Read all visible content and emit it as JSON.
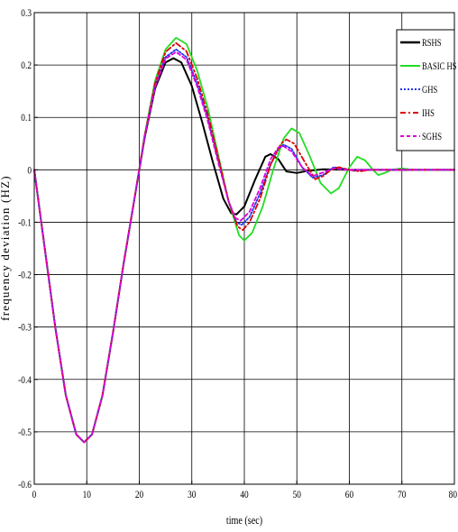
{
  "chart_data": {
    "type": "line",
    "title": "",
    "xlabel": "time (sec)",
    "ylabel": "frequency deviation (HZ)",
    "xlim": [
      0,
      80
    ],
    "ylim": [
      -0.6,
      0.3
    ],
    "xticks": [
      0,
      10,
      20,
      30,
      40,
      50,
      60,
      70,
      80
    ],
    "xtick_labels": [
      "0",
      "10",
      "20",
      "30",
      "40",
      "50",
      "60",
      "70",
      "80"
    ],
    "yticks": [
      0.3,
      0.2,
      0.1,
      0,
      -0.1,
      -0.2,
      -0.3,
      -0.4,
      -0.5,
      -0.6
    ],
    "ytick_labels": [
      "0.3",
      "0.2",
      "0.1",
      "0",
      "-0.1",
      "-0.2",
      "-0.3",
      "-0.4",
      "-0.5",
      "-0.6"
    ],
    "grid": true,
    "legend_position": "top-right",
    "series": [
      {
        "name": "RSHS",
        "color": "#000000",
        "dash": "solid",
        "points": [
          [
            0,
            0
          ],
          [
            2,
            -0.15
          ],
          [
            4,
            -0.3
          ],
          [
            6,
            -0.43
          ],
          [
            8,
            -0.505
          ],
          [
            9.5,
            -0.52
          ],
          [
            11,
            -0.505
          ],
          [
            13,
            -0.43
          ],
          [
            15,
            -0.31
          ],
          [
            17,
            -0.18
          ],
          [
            19,
            -0.06
          ],
          [
            21,
            0.06
          ],
          [
            23,
            0.155
          ],
          [
            25,
            0.205
          ],
          [
            26.5,
            0.213
          ],
          [
            28,
            0.205
          ],
          [
            30,
            0.16
          ],
          [
            32,
            0.09
          ],
          [
            34,
            0.015
          ],
          [
            36,
            -0.055
          ],
          [
            37.5,
            -0.083
          ],
          [
            38.5,
            -0.085
          ],
          [
            40,
            -0.07
          ],
          [
            42,
            -0.02
          ],
          [
            44,
            0.025
          ],
          [
            45,
            0.03
          ],
          [
            46.5,
            0.02
          ],
          [
            48,
            -0.003
          ],
          [
            50,
            -0.006
          ],
          [
            52,
            -0.002
          ],
          [
            55,
            0.001
          ],
          [
            60,
            0
          ],
          [
            70,
            0
          ],
          [
            80,
            0
          ]
        ]
      },
      {
        "name": "BASIC HS",
        "color": "#22dd22",
        "dash": "solid",
        "points": [
          [
            0,
            0
          ],
          [
            2,
            -0.15
          ],
          [
            4,
            -0.3
          ],
          [
            6,
            -0.43
          ],
          [
            8,
            -0.505
          ],
          [
            9.5,
            -0.52
          ],
          [
            11,
            -0.505
          ],
          [
            13,
            -0.43
          ],
          [
            15,
            -0.31
          ],
          [
            17,
            -0.18
          ],
          [
            19,
            -0.06
          ],
          [
            21,
            0.065
          ],
          [
            23,
            0.17
          ],
          [
            25,
            0.23
          ],
          [
            27,
            0.252
          ],
          [
            29,
            0.24
          ],
          [
            31,
            0.19
          ],
          [
            33,
            0.12
          ],
          [
            35,
            0.03
          ],
          [
            37,
            -0.06
          ],
          [
            39,
            -0.125
          ],
          [
            40,
            -0.135
          ],
          [
            41.5,
            -0.12
          ],
          [
            43.5,
            -0.07
          ],
          [
            45.5,
            0
          ],
          [
            47.5,
            0.06
          ],
          [
            49,
            0.079
          ],
          [
            50.5,
            0.07
          ],
          [
            52.5,
            0.025
          ],
          [
            54.5,
            -0.025
          ],
          [
            56.5,
            -0.045
          ],
          [
            58,
            -0.035
          ],
          [
            60,
            0.005
          ],
          [
            61.5,
            0.025
          ],
          [
            63,
            0.018
          ],
          [
            64.5,
            0
          ],
          [
            65.5,
            -0.01
          ],
          [
            67,
            -0.005
          ],
          [
            68,
            0
          ],
          [
            70,
            0.003
          ],
          [
            72,
            0
          ],
          [
            80,
            0
          ]
        ]
      },
      {
        "name": "GHS",
        "color": "#2233ee",
        "dash": "2,2",
        "points": [
          [
            0,
            0
          ],
          [
            2,
            -0.15
          ],
          [
            4,
            -0.3
          ],
          [
            6,
            -0.43
          ],
          [
            8,
            -0.505
          ],
          [
            9.5,
            -0.52
          ],
          [
            11,
            -0.505
          ],
          [
            13,
            -0.43
          ],
          [
            15,
            -0.31
          ],
          [
            17,
            -0.18
          ],
          [
            19,
            -0.06
          ],
          [
            21,
            0.062
          ],
          [
            23,
            0.16
          ],
          [
            25,
            0.215
          ],
          [
            27,
            0.23
          ],
          [
            29,
            0.215
          ],
          [
            31,
            0.165
          ],
          [
            33,
            0.1
          ],
          [
            35,
            0.02
          ],
          [
            37,
            -0.06
          ],
          [
            38.5,
            -0.1
          ],
          [
            39.5,
            -0.105
          ],
          [
            41,
            -0.09
          ],
          [
            43,
            -0.045
          ],
          [
            45,
            0.01
          ],
          [
            46.5,
            0.04
          ],
          [
            47.5,
            0.048
          ],
          [
            49,
            0.04
          ],
          [
            51,
            0.005
          ],
          [
            53,
            -0.015
          ],
          [
            55,
            -0.01
          ],
          [
            57,
            0.005
          ],
          [
            59,
            0.002
          ],
          [
            61,
            -0.002
          ],
          [
            63,
            0
          ],
          [
            80,
            0
          ]
        ]
      },
      {
        "name": "IHS",
        "color": "#dd0000",
        "dash": "6,3,2,3",
        "points": [
          [
            0,
            0
          ],
          [
            2,
            -0.15
          ],
          [
            4,
            -0.3
          ],
          [
            6,
            -0.43
          ],
          [
            8,
            -0.505
          ],
          [
            9.5,
            -0.52
          ],
          [
            11,
            -0.505
          ],
          [
            13,
            -0.43
          ],
          [
            15,
            -0.31
          ],
          [
            17,
            -0.18
          ],
          [
            19,
            -0.06
          ],
          [
            21,
            0.064
          ],
          [
            23,
            0.165
          ],
          [
            25,
            0.225
          ],
          [
            27,
            0.242
          ],
          [
            29,
            0.226
          ],
          [
            31,
            0.175
          ],
          [
            33,
            0.108
          ],
          [
            35,
            0.025
          ],
          [
            37,
            -0.06
          ],
          [
            38.7,
            -0.108
          ],
          [
            39.7,
            -0.115
          ],
          [
            41,
            -0.1
          ],
          [
            43,
            -0.055
          ],
          [
            45,
            0.01
          ],
          [
            47,
            0.05
          ],
          [
            48,
            0.058
          ],
          [
            49.5,
            0.05
          ],
          [
            51.5,
            0.015
          ],
          [
            53.5,
            -0.018
          ],
          [
            55,
            -0.012
          ],
          [
            56.5,
            0
          ],
          [
            58,
            0.005
          ],
          [
            60,
            0
          ],
          [
            62,
            -0.003
          ],
          [
            64,
            0
          ],
          [
            80,
            0
          ]
        ]
      },
      {
        "name": "SGHS",
        "color": "#dd00dd",
        "dash": "4,3",
        "points": [
          [
            0,
            0
          ],
          [
            2,
            -0.15
          ],
          [
            4,
            -0.3
          ],
          [
            6,
            -0.43
          ],
          [
            8,
            -0.505
          ],
          [
            9.5,
            -0.52
          ],
          [
            11,
            -0.505
          ],
          [
            13,
            -0.43
          ],
          [
            15,
            -0.31
          ],
          [
            17,
            -0.18
          ],
          [
            19,
            -0.06
          ],
          [
            21,
            0.062
          ],
          [
            23,
            0.158
          ],
          [
            25,
            0.212
          ],
          [
            27,
            0.225
          ],
          [
            29,
            0.21
          ],
          [
            31,
            0.16
          ],
          [
            33,
            0.095
          ],
          [
            35,
            0.015
          ],
          [
            37,
            -0.06
          ],
          [
            38.3,
            -0.092
          ],
          [
            39.3,
            -0.097
          ],
          [
            41,
            -0.08
          ],
          [
            43,
            -0.035
          ],
          [
            45,
            0.02
          ],
          [
            46.5,
            0.043
          ],
          [
            47.5,
            0.045
          ],
          [
            49,
            0.035
          ],
          [
            51,
            0.005
          ],
          [
            53,
            -0.012
          ],
          [
            55,
            -0.005
          ],
          [
            57,
            0.003
          ],
          [
            59,
            0
          ],
          [
            80,
            0
          ]
        ]
      }
    ]
  }
}
